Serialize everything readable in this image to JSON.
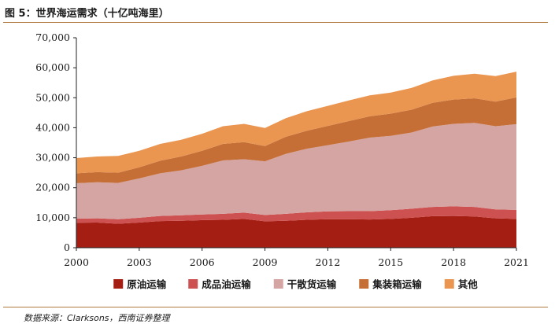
{
  "header": {
    "title": "图 5：世界海运需求（十亿吨海里）"
  },
  "footer": {
    "source": "数据来源：Clarksons，西南证券整理"
  },
  "chart_data": {
    "type": "area",
    "stacked": true,
    "title": "图 5：世界海运需求（十亿吨海里）",
    "xlabel": "",
    "ylabel": "",
    "x": [
      2000,
      2001,
      2002,
      2003,
      2004,
      2005,
      2006,
      2007,
      2008,
      2009,
      2010,
      2011,
      2012,
      2013,
      2014,
      2015,
      2016,
      2017,
      2018,
      2019,
      2020,
      2021
    ],
    "xticks": [
      "2000",
      "2003",
      "2006",
      "2009",
      "2012",
      "2015",
      "2018",
      "2021"
    ],
    "yticks": [
      "0",
      "10,000",
      "20,000",
      "30,000",
      "40,000",
      "50,000",
      "60,000",
      "70,000"
    ],
    "ylim": [
      0,
      70000
    ],
    "legend_position": "bottom",
    "series": [
      {
        "name": "原油运输",
        "color": "#a51e13",
        "values": [
          8300,
          8400,
          8000,
          8400,
          8900,
          9000,
          9200,
          9300,
          9600,
          8800,
          9000,
          9300,
          9500,
          9500,
          9400,
          9600,
          10000,
          10500,
          10600,
          10400,
          9800,
          9600
        ]
      },
      {
        "name": "成品油运输",
        "color": "#cd5150",
        "values": [
          1400,
          1400,
          1500,
          1600,
          1700,
          1800,
          1900,
          2000,
          2100,
          2100,
          2300,
          2500,
          2600,
          2700,
          2800,
          2900,
          3000,
          3100,
          3200,
          3200,
          3000,
          3000
        ]
      },
      {
        "name": "干散货运输",
        "color": "#d5a5a4",
        "values": [
          11800,
          12000,
          12100,
          13100,
          14200,
          15000,
          16200,
          17800,
          17800,
          17900,
          20000,
          21200,
          22100,
          23200,
          24500,
          24800,
          25400,
          26800,
          27500,
          28000,
          27700,
          28600
        ]
      },
      {
        "name": "集装箱运输",
        "color": "#c56f36",
        "values": [
          3300,
          3400,
          3400,
          3700,
          4200,
          4600,
          5000,
          5500,
          5700,
          5100,
          5700,
          6000,
          6400,
          6800,
          7100,
          7400,
          7600,
          7900,
          8100,
          8200,
          8200,
          8900
        ]
      },
      {
        "name": "其他",
        "color": "#ea9550",
        "values": [
          5100,
          5200,
          5600,
          5500,
          5600,
          5600,
          5700,
          5900,
          6100,
          6000,
          6200,
          6500,
          6700,
          6900,
          7000,
          7000,
          7300,
          7500,
          7900,
          8200,
          8500,
          8600
        ]
      }
    ]
  }
}
